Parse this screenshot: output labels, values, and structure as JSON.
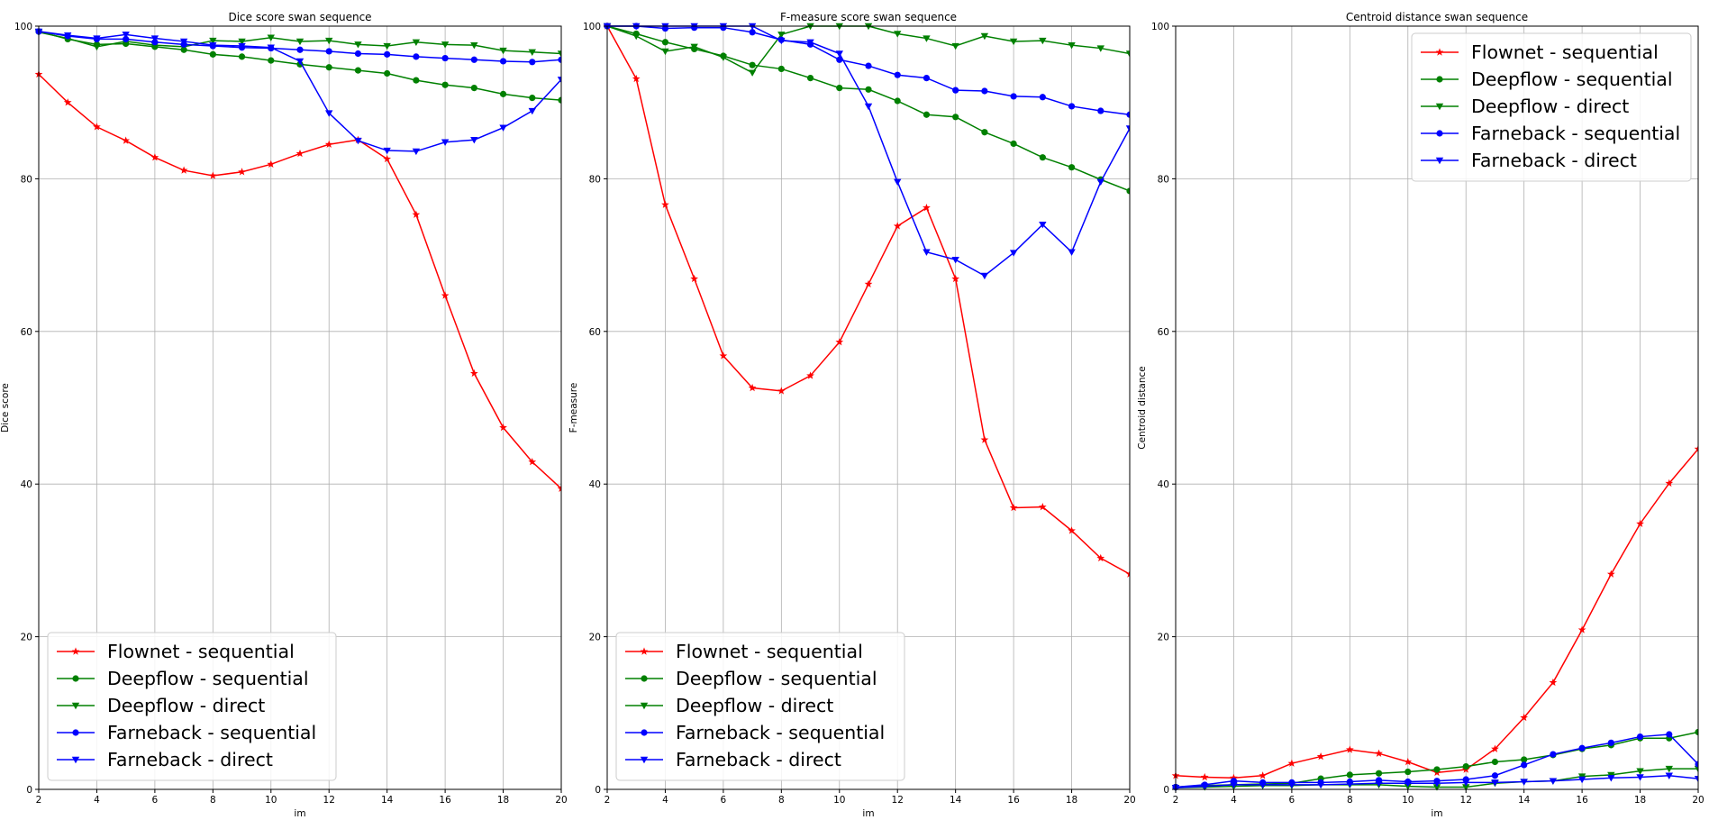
{
  "chart_data": [
    {
      "type": "line",
      "title": "Dice score swan sequence",
      "xlabel": "im",
      "ylabel": "Dice score",
      "xlim": [
        2,
        20
      ],
      "ylim": [
        0,
        100
      ],
      "xticks": [
        2,
        4,
        6,
        8,
        10,
        12,
        14,
        16,
        18,
        20
      ],
      "yticks": [
        0,
        20,
        40,
        60,
        80,
        100
      ],
      "grid": true,
      "legend_position": "lower-left",
      "x": [
        2,
        3,
        4,
        5,
        6,
        7,
        8,
        9,
        10,
        11,
        12,
        13,
        14,
        15,
        16,
        17,
        18,
        19,
        20
      ],
      "series": [
        {
          "name": "Flownet - sequential",
          "color": "#ff0000",
          "marker": "star",
          "values": [
            93.7,
            90.0,
            86.8,
            85.0,
            82.8,
            81.1,
            80.4,
            80.9,
            81.9,
            83.3,
            84.5,
            85.1,
            82.6,
            75.3,
            64.7,
            54.5,
            47.4,
            42.9,
            39.4
          ]
        },
        {
          "name": "Deepflow - sequential",
          "color": "#008000",
          "marker": "circle",
          "values": [
            99.3,
            98.3,
            97.6,
            97.7,
            97.3,
            96.9,
            96.3,
            96.0,
            95.5,
            95.0,
            94.6,
            94.2,
            93.8,
            92.9,
            92.3,
            91.9,
            91.1,
            90.6,
            90.3
          ]
        },
        {
          "name": "Deepflow - direct",
          "color": "#008000",
          "marker": "triangle-down",
          "values": [
            99.2,
            98.4,
            97.3,
            98.0,
            97.5,
            97.3,
            98.1,
            98.0,
            98.5,
            98.0,
            98.1,
            97.6,
            97.4,
            97.9,
            97.6,
            97.5,
            96.8,
            96.6,
            96.4
          ]
        },
        {
          "name": "Farneback - sequential",
          "color": "#0000ff",
          "marker": "circle",
          "values": [
            99.3,
            98.7,
            98.3,
            98.3,
            97.9,
            97.6,
            97.4,
            97.2,
            97.1,
            96.9,
            96.7,
            96.4,
            96.3,
            96.0,
            95.8,
            95.6,
            95.4,
            95.3,
            95.6
          ]
        },
        {
          "name": "Farneback - direct",
          "color": "#0000ff",
          "marker": "triangle-down",
          "values": [
            99.3,
            98.8,
            98.4,
            98.9,
            98.4,
            98.0,
            97.5,
            97.4,
            97.2,
            95.4,
            88.6,
            85.0,
            83.7,
            83.6,
            84.8,
            85.1,
            86.7,
            88.9,
            93.0
          ]
        }
      ]
    },
    {
      "type": "line",
      "title": "F-measure score swan sequence",
      "xlabel": "im",
      "ylabel": "F-measure",
      "xlim": [
        2,
        20
      ],
      "ylim": [
        0,
        100
      ],
      "xticks": [
        2,
        4,
        6,
        8,
        10,
        12,
        14,
        16,
        18,
        20
      ],
      "yticks": [
        0,
        20,
        40,
        60,
        80,
        100
      ],
      "grid": true,
      "legend_position": "lower-left",
      "x": [
        2,
        3,
        4,
        5,
        6,
        7,
        8,
        9,
        10,
        11,
        12,
        13,
        14,
        15,
        16,
        17,
        18,
        19,
        20
      ],
      "series": [
        {
          "name": "Flownet - sequential",
          "color": "#ff0000",
          "marker": "star",
          "values": [
            100.0,
            93.1,
            76.6,
            66.9,
            56.8,
            52.6,
            52.2,
            54.2,
            58.6,
            66.2,
            73.8,
            76.2,
            66.9,
            45.8,
            36.9,
            37.0,
            33.9,
            30.3,
            28.2
          ]
        },
        {
          "name": "Deepflow - sequential",
          "color": "#008000",
          "marker": "circle",
          "values": [
            100.0,
            99.0,
            97.9,
            97.0,
            96.1,
            94.9,
            94.4,
            93.2,
            91.9,
            91.7,
            90.2,
            88.4,
            88.1,
            86.1,
            84.6,
            82.8,
            81.5,
            79.9,
            78.4
          ]
        },
        {
          "name": "Deepflow - direct",
          "color": "#008000",
          "marker": "triangle-down",
          "values": [
            100.0,
            98.7,
            96.7,
            97.3,
            95.9,
            93.9,
            98.9,
            100.0,
            100.0,
            100.0,
            99.0,
            98.4,
            97.4,
            98.7,
            98.0,
            98.1,
            97.5,
            97.1,
            96.4
          ]
        },
        {
          "name": "Farneback - sequential",
          "color": "#0000ff",
          "marker": "circle",
          "values": [
            100.0,
            100.0,
            99.7,
            99.8,
            99.8,
            99.2,
            98.2,
            97.6,
            95.6,
            94.8,
            93.6,
            93.2,
            91.6,
            91.5,
            90.8,
            90.7,
            89.5,
            88.9,
            88.4
          ]
        },
        {
          "name": "Farneback - direct",
          "color": "#0000ff",
          "marker": "triangle-down",
          "values": [
            100.0,
            100.0,
            100.0,
            100.0,
            100.0,
            100.0,
            98.1,
            97.9,
            96.4,
            89.5,
            79.6,
            70.4,
            69.4,
            67.3,
            70.3,
            74.0,
            70.4,
            79.6,
            86.6
          ]
        }
      ]
    },
    {
      "type": "line",
      "title": "Centroid distance swan sequence",
      "xlabel": "im",
      "ylabel": "Centroid distance",
      "xlim": [
        2,
        20
      ],
      "ylim": [
        0,
        100
      ],
      "xticks": [
        2,
        4,
        6,
        8,
        10,
        12,
        14,
        16,
        18,
        20
      ],
      "yticks": [
        0,
        20,
        40,
        60,
        80,
        100
      ],
      "grid": true,
      "legend_position": "upper-right",
      "x": [
        2,
        3,
        4,
        5,
        6,
        7,
        8,
        9,
        10,
        11,
        12,
        13,
        14,
        15,
        16,
        17,
        18,
        19,
        20
      ],
      "series": [
        {
          "name": "Flownet - sequential",
          "color": "#ff0000",
          "marker": "star",
          "values": [
            1.8,
            1.6,
            1.5,
            1.8,
            3.4,
            4.3,
            5.2,
            4.7,
            3.6,
            2.2,
            2.6,
            5.3,
            9.4,
            14.0,
            20.9,
            28.2,
            34.8,
            40.1,
            44.6
          ]
        },
        {
          "name": "Deepflow - sequential",
          "color": "#008000",
          "marker": "circle",
          "values": [
            0.3,
            0.5,
            0.6,
            0.7,
            0.8,
            1.4,
            1.9,
            2.1,
            2.3,
            2.6,
            3.0,
            3.6,
            3.9,
            4.5,
            5.3,
            5.8,
            6.7,
            6.7,
            7.5
          ]
        },
        {
          "name": "Deepflow - direct",
          "color": "#008000",
          "marker": "triangle-down",
          "values": [
            0.2,
            0.3,
            0.4,
            0.5,
            0.5,
            0.6,
            0.6,
            0.6,
            0.4,
            0.3,
            0.3,
            0.8,
            1.0,
            1.1,
            1.7,
            1.9,
            2.4,
            2.7,
            2.7
          ]
        },
        {
          "name": "Farneback - sequential",
          "color": "#0000ff",
          "marker": "circle",
          "values": [
            0.3,
            0.6,
            1.1,
            0.9,
            0.9,
            0.9,
            1.0,
            1.2,
            1.0,
            1.1,
            1.3,
            1.8,
            3.2,
            4.6,
            5.4,
            6.1,
            6.9,
            7.2,
            3.3
          ]
        },
        {
          "name": "Farneback - direct",
          "color": "#0000ff",
          "marker": "triangle-down",
          "values": [
            0.2,
            0.4,
            0.6,
            0.6,
            0.6,
            0.6,
            0.7,
            0.8,
            0.8,
            0.8,
            0.9,
            0.9,
            1.0,
            1.1,
            1.3,
            1.5,
            1.6,
            1.8,
            1.4
          ]
        }
      ]
    }
  ]
}
